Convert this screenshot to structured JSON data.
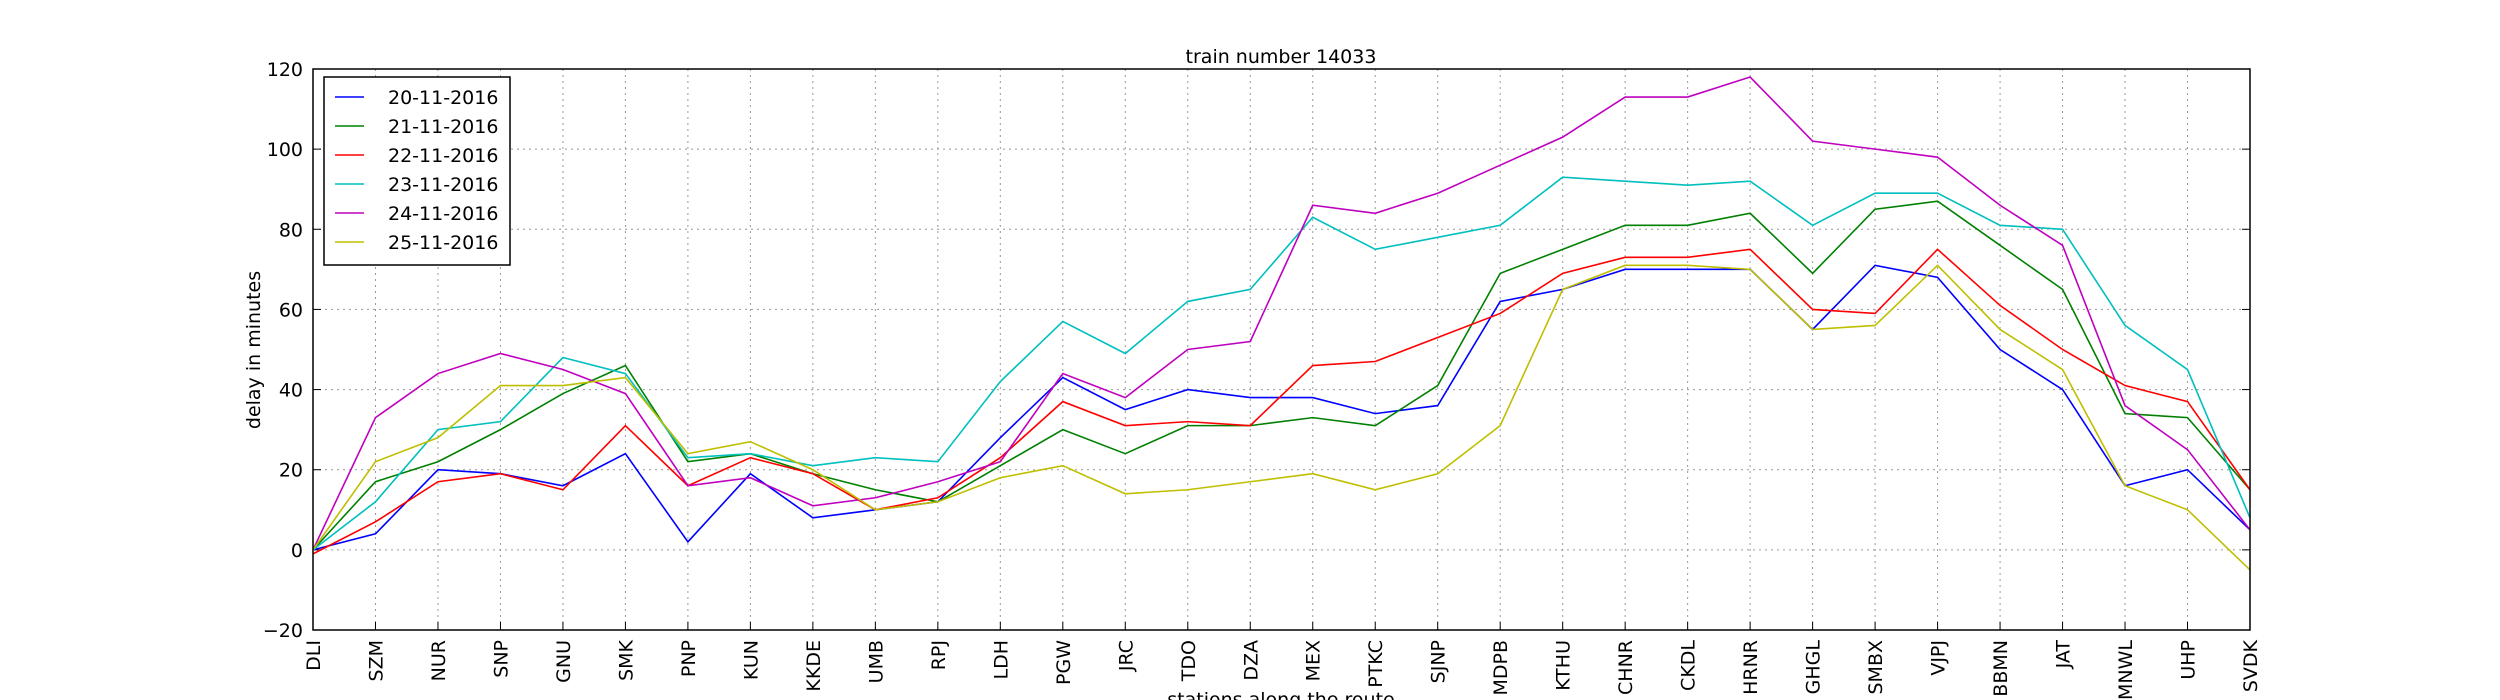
{
  "chart_data": {
    "type": "line",
    "title": "train number 14033",
    "x_label": "stations along the route",
    "y_label": "delay in minutes",
    "categories": [
      "DLI",
      "SZM",
      "NUR",
      "SNP",
      "GNU",
      "SMK",
      "PNP",
      "KUN",
      "KKDE",
      "UMB",
      "RPJ",
      "LDH",
      "PGW",
      "JRC",
      "TDO",
      "DZA",
      "MEX",
      "PTKC",
      "SJNP",
      "MDPB",
      "KTHU",
      "CHNR",
      "CKDL",
      "HRNR",
      "GHGL",
      "SMBX",
      "VJPJ",
      "BBMN",
      "JAT",
      "MNWL",
      "UHP",
      "SVDK"
    ],
    "series": [
      {
        "name": "20-11-2016",
        "color": "#0000ff",
        "values": [
          0,
          4,
          20,
          19,
          16,
          24,
          2,
          19,
          8,
          10,
          12,
          28,
          43,
          35,
          40,
          38,
          38,
          34,
          36,
          62,
          65,
          70,
          70,
          70,
          55,
          71,
          68,
          50,
          40,
          16,
          20,
          5
        ]
      },
      {
        "name": "21-11-2016",
        "color": "#008000",
        "values": [
          0,
          17,
          22,
          30,
          39,
          46,
          22,
          24,
          19,
          15,
          12,
          21,
          30,
          24,
          31,
          31,
          33,
          31,
          41,
          69,
          75,
          81,
          81,
          84,
          69,
          85,
          87,
          76,
          65,
          34,
          33,
          15
        ]
      },
      {
        "name": "22-11-2016",
        "color": "#ff0000",
        "values": [
          -1,
          7,
          17,
          19,
          15,
          31,
          16,
          23,
          19,
          10,
          13,
          23,
          37,
          31,
          32,
          31,
          46,
          47,
          53,
          59,
          69,
          73,
          73,
          75,
          60,
          59,
          75,
          61,
          50,
          41,
          37,
          15
        ]
      },
      {
        "name": "23-11-2016",
        "color": "#00bfbf",
        "values": [
          0,
          12,
          30,
          32,
          48,
          44,
          23,
          24,
          21,
          23,
          22,
          42,
          57,
          49,
          62,
          65,
          83,
          75,
          78,
          81,
          93,
          92,
          91,
          92,
          81,
          89,
          89,
          81,
          80,
          56,
          45,
          8
        ]
      },
      {
        "name": "24-11-2016",
        "color": "#bf00bf",
        "values": [
          0,
          33,
          44,
          49,
          45,
          39,
          16,
          18,
          11,
          13,
          17,
          22,
          44,
          38,
          50,
          52,
          86,
          84,
          89,
          96,
          103,
          113,
          113,
          118,
          102,
          100,
          98,
          86,
          76,
          36,
          25,
          5
        ]
      },
      {
        "name": "25-11-2016",
        "color": "#bfbf00",
        "values": [
          0,
          22,
          28,
          41,
          41,
          43,
          24,
          27,
          20,
          10,
          12,
          18,
          21,
          14,
          15,
          17,
          19,
          15,
          19,
          31,
          65,
          71,
          71,
          70,
          55,
          56,
          71,
          55,
          45,
          16,
          10,
          -5
        ]
      }
    ],
    "ylim": [
      -20,
      120
    ],
    "yticks": [
      {
        "value": -20,
        "label": "−20"
      },
      0,
      20,
      40,
      60,
      80,
      100,
      120
    ],
    "grid": true,
    "legend": "upper left"
  }
}
